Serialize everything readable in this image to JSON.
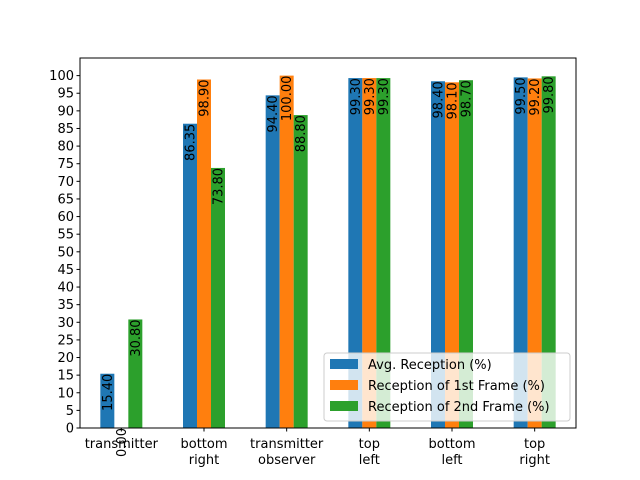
{
  "chart_data": {
    "type": "bar",
    "categories": [
      [
        "transmitter"
      ],
      [
        "bottom",
        "right"
      ],
      [
        "transmitter",
        "observer"
      ],
      [
        "top",
        "left"
      ],
      [
        "bottom",
        "left"
      ],
      [
        "top",
        "right"
      ]
    ],
    "series": [
      {
        "name": "Avg. Reception (%)",
        "color": "#1f77b4",
        "values": [
          15.4,
          86.35,
          94.4,
          99.3,
          98.4,
          99.5
        ],
        "labels": [
          "15.40",
          "86.35",
          "94.40",
          "99.30",
          "98.40",
          "99.50"
        ]
      },
      {
        "name": "Reception of 1st Frame (%)",
        "color": "#ff7f0e",
        "values": [
          0.0,
          98.9,
          100.0,
          99.3,
          98.1,
          99.2
        ],
        "labels": [
          "0.00",
          "98.90",
          "100.00",
          "99.30",
          "98.10",
          "99.20"
        ]
      },
      {
        "name": "Reception of 2nd Frame (%)",
        "color": "#2ca02c",
        "values": [
          30.8,
          73.8,
          88.8,
          99.3,
          98.7,
          99.8
        ],
        "labels": [
          "30.80",
          "73.80",
          "88.80",
          "99.30",
          "98.70",
          "99.80"
        ]
      }
    ],
    "yticks": [
      0,
      5,
      10,
      15,
      20,
      25,
      30,
      35,
      40,
      45,
      50,
      55,
      60,
      65,
      70,
      75,
      80,
      85,
      90,
      95,
      100
    ],
    "ylim": [
      0,
      105
    ],
    "title": "",
    "xlabel": "",
    "ylabel": "",
    "grid": false,
    "legend_position": "lower-right"
  }
}
